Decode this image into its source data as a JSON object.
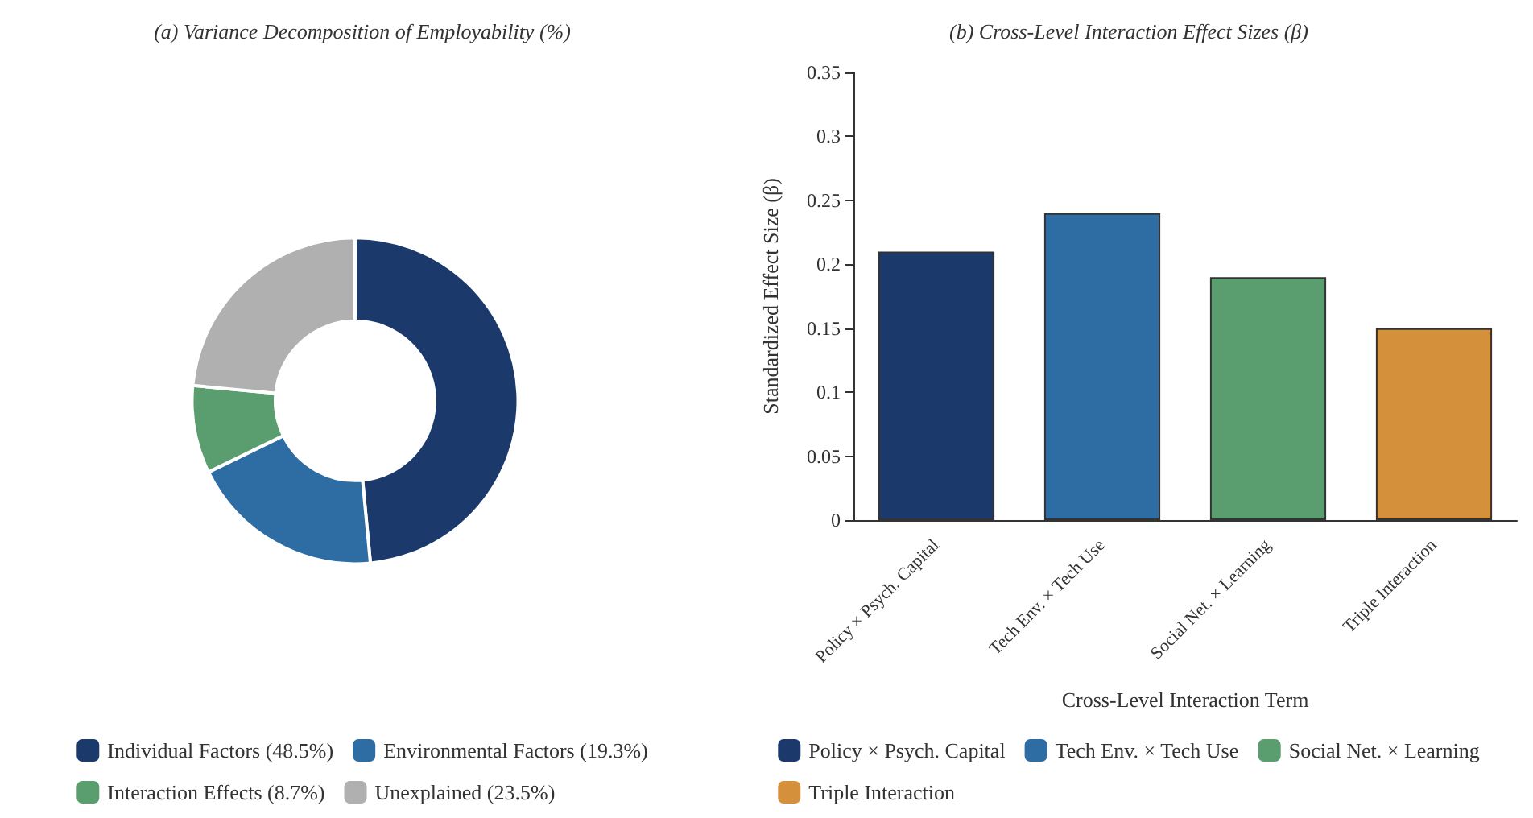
{
  "chart_data": [
    {
      "type": "donut",
      "title": "(a) Variance Decomposition of Employability (%)",
      "categories": [
        "Individual Factors (48.5%)",
        "Environmental Factors (19.3%)",
        "Interaction Effects (8.7%)",
        "Unexplained (23.5%)"
      ],
      "values": [
        48.5,
        19.3,
        8.7,
        23.5
      ],
      "colors": [
        "#1b3a6b",
        "#2e6da4",
        "#5a9e6f",
        "#b0b0b0"
      ],
      "legend": "bottom"
    },
    {
      "type": "bar",
      "title": "(b) Cross-Level Interaction Effect Sizes (β)",
      "xlabel": "Cross-Level Interaction Term",
      "ylabel": "Standardized Effect Size (β)",
      "categories": [
        "Policy × Psych. Capital",
        "Tech Env. × Tech Use",
        "Social Net. × Learning",
        "Triple Interaction"
      ],
      "series": [
        {
          "name": "Policy × Psych. Capital",
          "color": "#1b3a6b",
          "values": [
            0.21,
            null,
            null,
            null
          ]
        },
        {
          "name": "Tech Env. × Tech Use",
          "color": "#2e6da4",
          "values": [
            null,
            0.24,
            null,
            null
          ]
        },
        {
          "name": "Social Net. × Learning",
          "color": "#5a9e6f",
          "values": [
            null,
            null,
            0.19,
            null
          ]
        },
        {
          "name": "Triple Interaction",
          "color": "#d4903a",
          "values": [
            null,
            null,
            null,
            0.15
          ]
        }
      ],
      "ylim": [
        0,
        0.35
      ],
      "yticks": [
        0,
        0.05,
        0.1,
        0.15,
        0.2,
        0.25,
        0.3,
        0.35
      ],
      "legend": "bottom"
    }
  ]
}
